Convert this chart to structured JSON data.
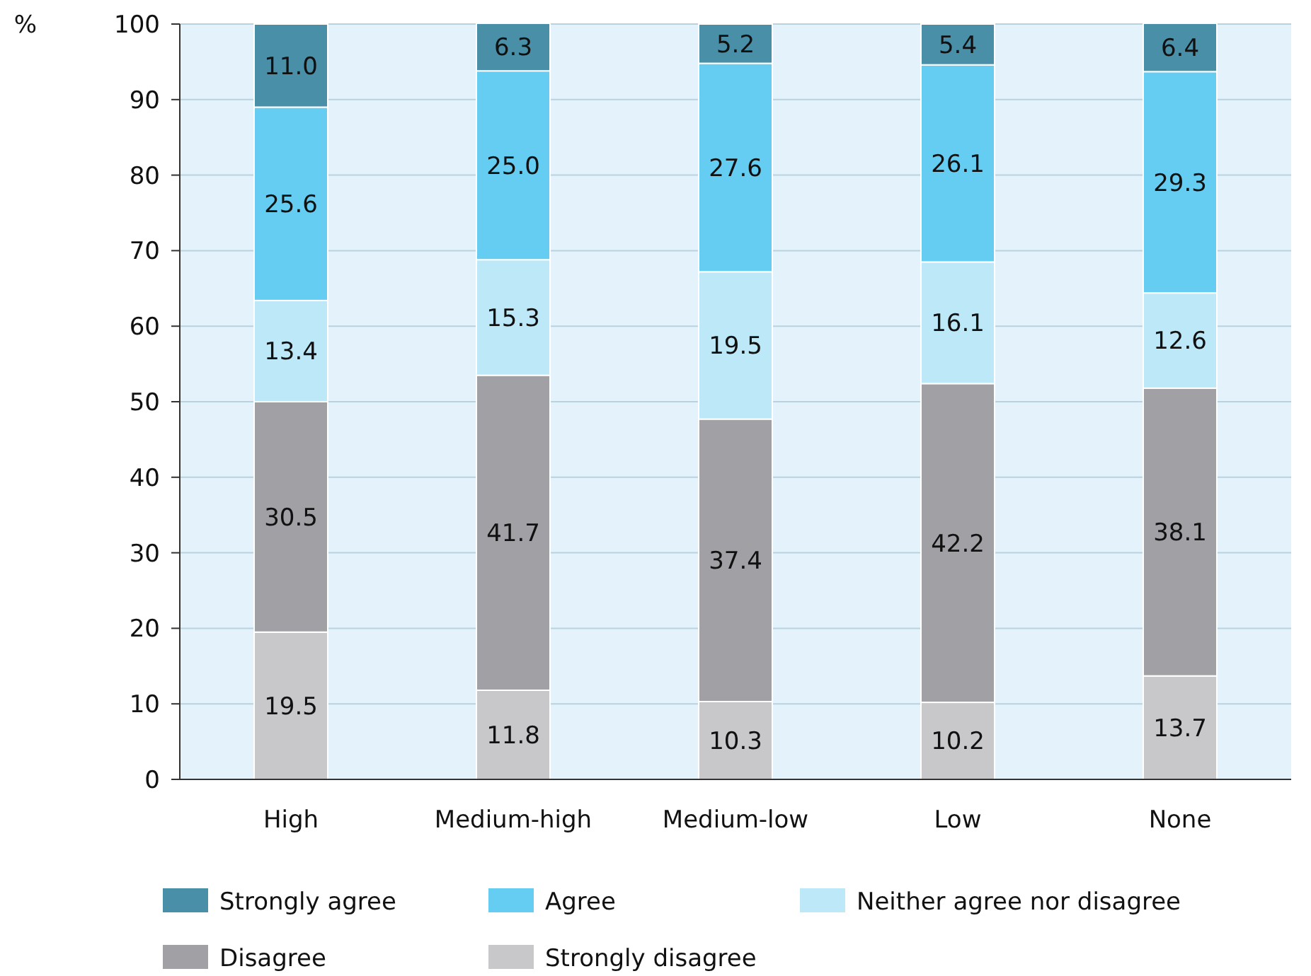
{
  "chart_data": {
    "type": "bar",
    "stacked": true,
    "ylabel": "%",
    "categories": [
      "High",
      "Medium-high",
      "Medium-low",
      "Low",
      "None"
    ],
    "series": [
      {
        "name": "Strongly disagree",
        "color": "#c8c8ca",
        "values": [
          19.5,
          11.8,
          10.3,
          10.2,
          13.7
        ],
        "value_labels": [
          "19.5",
          "11.8",
          "10.3",
          "10.2",
          "13.7"
        ]
      },
      {
        "name": "Disagree",
        "color": "#a0a0a5",
        "values": [
          30.5,
          41.7,
          37.4,
          42.2,
          38.1
        ],
        "value_labels": [
          "30.5",
          "41.7",
          "37.4",
          "42.2",
          "38.1"
        ]
      },
      {
        "name": "Neither agree nor disagree",
        "color": "#bde8f8",
        "values": [
          13.4,
          15.3,
          19.5,
          16.1,
          12.6
        ],
        "value_labels": [
          "13.4",
          "15.3",
          "19.5",
          "16.1",
          "12.6"
        ]
      },
      {
        "name": "Agree",
        "color": "#66cdf2",
        "values": [
          25.6,
          25.0,
          27.6,
          26.1,
          29.3
        ],
        "value_labels": [
          "25.6",
          "25.0",
          "27.6",
          "26.1",
          "29.3"
        ]
      },
      {
        "name": "Strongly agree",
        "color": "#4a8fa8",
        "values": [
          11.0,
          6.3,
          5.2,
          5.4,
          6.4
        ],
        "value_labels": [
          "11.0",
          "6.3",
          "5.2",
          "5.4",
          "6.4"
        ]
      }
    ],
    "ylim": [
      0,
      100
    ],
    "yticks": [
      0,
      10,
      20,
      30,
      40,
      50,
      60,
      70,
      80,
      90,
      100
    ],
    "grid": "y",
    "legend": "bottom"
  }
}
